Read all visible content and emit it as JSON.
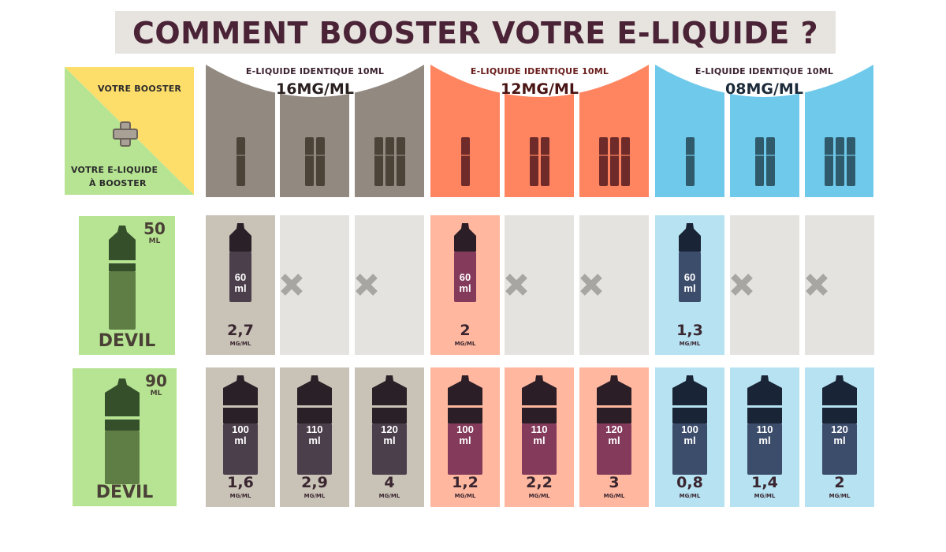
{
  "title": "COMMENT BOOSTER VOTRE E-LIQUIDE ?",
  "legend": {
    "booster_label": "VOTRE BOOSTER",
    "eliquid_label_line1": "VOTRE E-LIQUIDE",
    "eliquid_label_line2": "À BOOSTER",
    "plus_icon": "plus-icon"
  },
  "groups": [
    {
      "subtitle": "E-LIQUIDE IDENTIQUE 10ML",
      "strength": "16MG/ML",
      "color": "#928981",
      "light": "#c9c3b7",
      "bottle": "#4b3f4b",
      "bottle_dark": "#2a2028",
      "vial": "#4b4238"
    },
    {
      "subtitle": "E-LIQUIDE IDENTIQUE 10ML",
      "strength": "12MG/ML",
      "color": "#ff8561",
      "light": "#ffb79f",
      "bottle": "#833a5b",
      "bottle_dark": "#2c1e26",
      "vial": "#6e2b2a"
    },
    {
      "subtitle": "E-LIQUIDE IDENTIQUE 10ML",
      "strength": "08MG/ML",
      "color": "#6fc9ea",
      "light": "#b6e2f1",
      "bottle": "#3c4d6b",
      "bottle_dark": "#192436",
      "vial": "#2f5a6b"
    }
  ],
  "rows": [
    {
      "name": "DEVIL",
      "volume": "50",
      "volume_unit": "ML",
      "cells": [
        {
          "ml": "60",
          "ml_unit": "ml",
          "value": "2,7",
          "unit": "MG/ML",
          "available": true
        },
        {
          "available": false,
          "icon": "cross-icon"
        },
        {
          "available": false,
          "icon": "cross-icon"
        },
        {
          "ml": "60",
          "ml_unit": "ml",
          "value": "2",
          "unit": "MG/ML",
          "available": true
        },
        {
          "available": false,
          "icon": "cross-icon"
        },
        {
          "available": false,
          "icon": "cross-icon"
        },
        {
          "ml": "60",
          "ml_unit": "ml",
          "value": "1,3",
          "unit": "MG/ML",
          "available": true
        },
        {
          "available": false,
          "icon": "cross-icon"
        },
        {
          "available": false,
          "icon": "cross-icon"
        }
      ]
    },
    {
      "name": "DEVIL",
      "volume": "90",
      "volume_unit": "ML",
      "cells": [
        {
          "ml": "100",
          "ml_unit": "ml",
          "value": "1,6",
          "unit": "MG/ML",
          "available": true
        },
        {
          "ml": "110",
          "ml_unit": "ml",
          "value": "2,9",
          "unit": "MG/ML",
          "available": true
        },
        {
          "ml": "120",
          "ml_unit": "ml",
          "value": "4",
          "unit": "MG/ML",
          "available": true
        },
        {
          "ml": "100",
          "ml_unit": "ml",
          "value": "1,2",
          "unit": "MG/ML",
          "available": true
        },
        {
          "ml": "110",
          "ml_unit": "ml",
          "value": "2,2",
          "unit": "MG/ML",
          "available": true
        },
        {
          "ml": "120",
          "ml_unit": "ml",
          "value": "3",
          "unit": "MG/ML",
          "available": true
        },
        {
          "ml": "100",
          "ml_unit": "ml",
          "value": "0,8",
          "unit": "MG/ML",
          "available": true
        },
        {
          "ml": "110",
          "ml_unit": "ml",
          "value": "1,4",
          "unit": "MG/ML",
          "available": true
        },
        {
          "ml": "120",
          "ml_unit": "ml",
          "value": "2",
          "unit": "MG/ML",
          "available": true
        }
      ]
    }
  ],
  "booster_counts": [
    1,
    2,
    3
  ]
}
